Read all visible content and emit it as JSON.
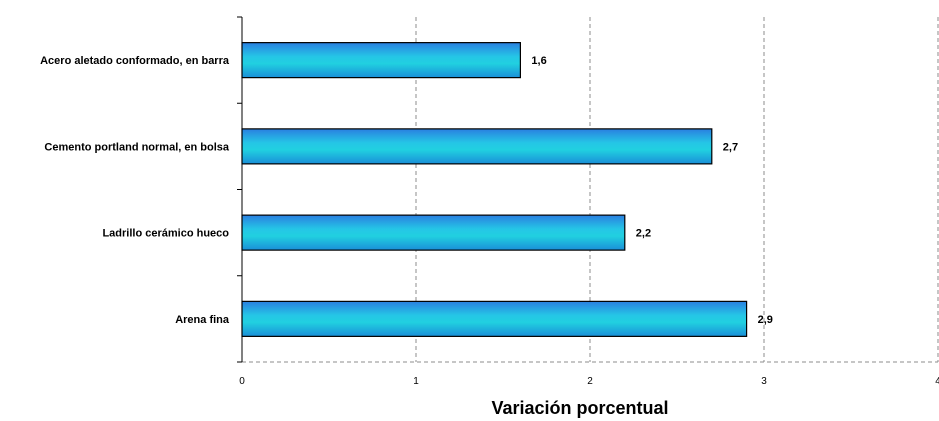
{
  "chart_data": {
    "type": "bar",
    "orientation": "horizontal",
    "categories": [
      "Acero aletado conformado, en barra",
      "Cemento portland normal, en bolsa",
      "Ladrillo cerámico hueco",
      "Arena fina"
    ],
    "values": [
      1.6,
      2.7,
      2.2,
      2.9
    ],
    "value_labels": [
      "1,6",
      "2,7",
      "2,2",
      "2,9"
    ],
    "xlabel": "Variación porcentual",
    "ylabel": "",
    "xlim": [
      0,
      4
    ],
    "xticks": [
      0,
      1,
      2,
      3,
      4
    ],
    "xtick_labels": [
      "0",
      "1",
      "2",
      "3",
      "4"
    ],
    "grid": "vertical-dashed",
    "legend": "none",
    "colors": {
      "bar_top": "#2a7fe0",
      "bar_mid": "#25c6e6",
      "bar_bottom": "#1a8fd8",
      "bar_stroke": "#000000",
      "grid": "#8c8c8c"
    }
  }
}
